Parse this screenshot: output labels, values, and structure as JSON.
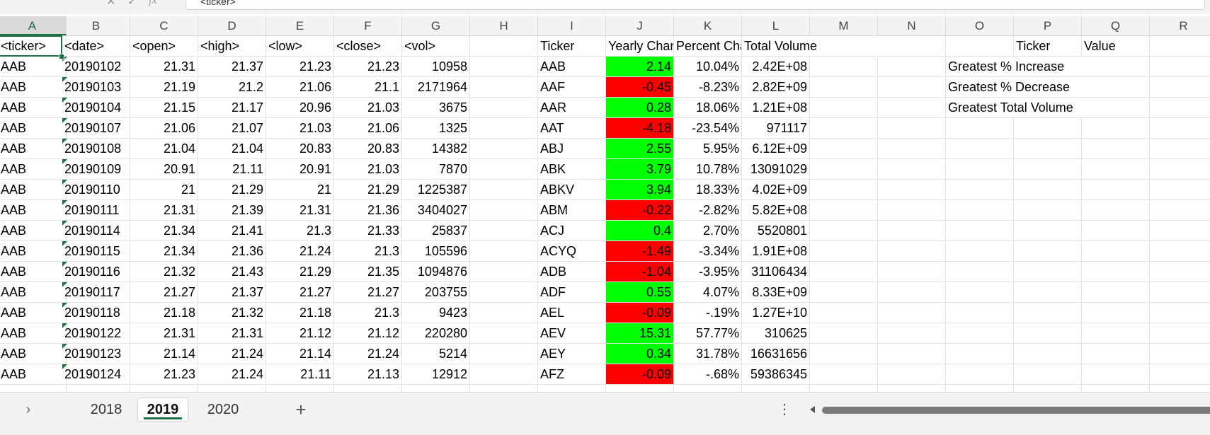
{
  "formula_bar": {
    "cell_content": "<ticker>",
    "fx_label": "fx"
  },
  "columns": [
    "A",
    "B",
    "C",
    "D",
    "E",
    "F",
    "G",
    "H",
    "I",
    "J",
    "K",
    "L",
    "M",
    "N",
    "O",
    "P",
    "Q",
    "R"
  ],
  "active_column": "A",
  "header_row": {
    "A": "<ticker>",
    "B": "<date>",
    "C": "<open>",
    "D": "<high>",
    "E": "<low>",
    "F": "<close>",
    "G": "<vol>",
    "I": "Ticker",
    "J": "Yearly Change",
    "K": "Percent Change",
    "L": "Total Volume",
    "P": "Ticker",
    "Q": "Value"
  },
  "raw_rows": [
    {
      "ticker": "AAB",
      "date": "20190102",
      "open": "21.31",
      "high": "21.37",
      "low": "21.23",
      "close": "21.23",
      "vol": "10958"
    },
    {
      "ticker": "AAB",
      "date": "20190103",
      "open": "21.19",
      "high": "21.2",
      "low": "21.06",
      "close": "21.1",
      "vol": "2171964"
    },
    {
      "ticker": "AAB",
      "date": "20190104",
      "open": "21.15",
      "high": "21.17",
      "low": "20.96",
      "close": "21.03",
      "vol": "3675"
    },
    {
      "ticker": "AAB",
      "date": "20190107",
      "open": "21.06",
      "high": "21.07",
      "low": "21.03",
      "close": "21.06",
      "vol": "1325"
    },
    {
      "ticker": "AAB",
      "date": "20190108",
      "open": "21.04",
      "high": "21.04",
      "low": "20.83",
      "close": "20.83",
      "vol": "14382"
    },
    {
      "ticker": "AAB",
      "date": "20190109",
      "open": "20.91",
      "high": "21.11",
      "low": "20.91",
      "close": "21.03",
      "vol": "7870"
    },
    {
      "ticker": "AAB",
      "date": "20190110",
      "open": "21",
      "high": "21.29",
      "low": "21",
      "close": "21.29",
      "vol": "1225387"
    },
    {
      "ticker": "AAB",
      "date": "20190111",
      "open": "21.31",
      "high": "21.39",
      "low": "21.31",
      "close": "21.36",
      "vol": "3404027"
    },
    {
      "ticker": "AAB",
      "date": "20190114",
      "open": "21.34",
      "high": "21.41",
      "low": "21.3",
      "close": "21.33",
      "vol": "25837"
    },
    {
      "ticker": "AAB",
      "date": "20190115",
      "open": "21.34",
      "high": "21.36",
      "low": "21.24",
      "close": "21.3",
      "vol": "105596"
    },
    {
      "ticker": "AAB",
      "date": "20190116",
      "open": "21.32",
      "high": "21.43",
      "low": "21.29",
      "close": "21.35",
      "vol": "1094876"
    },
    {
      "ticker": "AAB",
      "date": "20190117",
      "open": "21.27",
      "high": "21.37",
      "low": "21.27",
      "close": "21.27",
      "vol": "203755"
    },
    {
      "ticker": "AAB",
      "date": "20190118",
      "open": "21.18",
      "high": "21.32",
      "low": "21.18",
      "close": "21.3",
      "vol": "9423"
    },
    {
      "ticker": "AAB",
      "date": "20190122",
      "open": "21.31",
      "high": "21.31",
      "low": "21.12",
      "close": "21.12",
      "vol": "220280"
    },
    {
      "ticker": "AAB",
      "date": "20190123",
      "open": "21.14",
      "high": "21.24",
      "low": "21.14",
      "close": "21.24",
      "vol": "5214"
    },
    {
      "ticker": "AAB",
      "date": "20190124",
      "open": "21.23",
      "high": "21.24",
      "low": "21.11",
      "close": "21.13",
      "vol": "12912"
    }
  ],
  "summary_rows": [
    {
      "ticker": "AAB",
      "yearly_change": "2.14",
      "percent_change": "10.04%",
      "total_volume": "2.42E+08",
      "status": "positive"
    },
    {
      "ticker": "AAF",
      "yearly_change": "-0.45",
      "percent_change": "-8.23%",
      "total_volume": "2.82E+09",
      "status": "negative"
    },
    {
      "ticker": "AAR",
      "yearly_change": "0.28",
      "percent_change": "18.06%",
      "total_volume": "1.21E+08",
      "status": "positive"
    },
    {
      "ticker": "AAT",
      "yearly_change": "-4.18",
      "percent_change": "-23.54%",
      "total_volume": "971117",
      "status": "negative"
    },
    {
      "ticker": "ABJ",
      "yearly_change": "2.55",
      "percent_change": "5.95%",
      "total_volume": "6.12E+09",
      "status": "positive"
    },
    {
      "ticker": "ABK",
      "yearly_change": "3.79",
      "percent_change": "10.78%",
      "total_volume": "13091029",
      "status": "positive"
    },
    {
      "ticker": "ABKV",
      "yearly_change": "3.94",
      "percent_change": "18.33%",
      "total_volume": "4.02E+09",
      "status": "positive"
    },
    {
      "ticker": "ABM",
      "yearly_change": "-0.22",
      "percent_change": "-2.82%",
      "total_volume": "5.82E+08",
      "status": "negative"
    },
    {
      "ticker": "ACJ",
      "yearly_change": "0.4",
      "percent_change": "2.70%",
      "total_volume": "5520801",
      "status": "positive"
    },
    {
      "ticker": "ACYQ",
      "yearly_change": "-1.49",
      "percent_change": "-3.34%",
      "total_volume": "1.91E+08",
      "status": "negative"
    },
    {
      "ticker": "ADB",
      "yearly_change": "-1.04",
      "percent_change": "-3.95%",
      "total_volume": "31106434",
      "status": "negative"
    },
    {
      "ticker": "ADF",
      "yearly_change": "0.55",
      "percent_change": "4.07%",
      "total_volume": "8.33E+09",
      "status": "positive"
    },
    {
      "ticker": "AEL",
      "yearly_change": "-0.09",
      "percent_change": "-.19%",
      "total_volume": "1.27E+10",
      "status": "negative"
    },
    {
      "ticker": "AEV",
      "yearly_change": "15.31",
      "percent_change": "57.77%",
      "total_volume": "310625",
      "status": "positive"
    },
    {
      "ticker": "AEY",
      "yearly_change": "0.34",
      "percent_change": "31.78%",
      "total_volume": "16631656",
      "status": "positive"
    },
    {
      "ticker": "AFZ",
      "yearly_change": "-0.09",
      "percent_change": "-.68%",
      "total_volume": "59386345",
      "status": "negative"
    }
  ],
  "greatest_labels": [
    "Greatest % Increase",
    "Greatest % Decrease",
    "Greatest Total Volume"
  ],
  "colors": {
    "positive": "#00ff00",
    "negative": "#ff0000",
    "accent": "#1e7145"
  },
  "sheet_tabs": {
    "tabs": [
      "2018",
      "2019",
      "2020"
    ],
    "active": "2019",
    "add_label": "+",
    "more_label": "⋮",
    "nav_label": "›"
  }
}
